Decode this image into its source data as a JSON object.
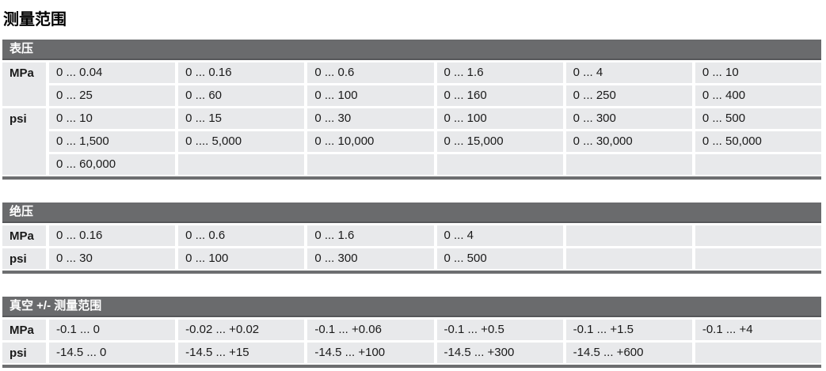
{
  "page": {
    "title": "测量范围"
  },
  "colors": {
    "header_bg": "#6a6b6d",
    "header_border": "#56575a",
    "cell_bg": "#e8e9eb",
    "section_bottom_border": "#6d6e70",
    "header_text": "#ffffff",
    "body_text": "#1a1a1a"
  },
  "sections": [
    {
      "title": "表压",
      "rows": [
        {
          "unit": "MPa",
          "unit_span": 2,
          "cells": [
            "0 ... 0.04",
            "0 ... 0.16",
            "0 ... 0.6",
            "0 ... 1.6",
            "0 ... 4",
            "0 ... 10"
          ]
        },
        {
          "unit": null,
          "cells": [
            "0 ... 25",
            "0 ... 60",
            "0 ... 100",
            "0 ... 160",
            "0 ... 250",
            "0 ... 400"
          ]
        },
        {
          "unit": "psi",
          "unit_span": 3,
          "cells": [
            "0 ... 10",
            "0 ... 15",
            "0 ... 30",
            "0 ... 100",
            "0 ... 300",
            "0 ... 500"
          ]
        },
        {
          "unit": null,
          "cells": [
            "0 ... 1,500",
            "0 .... 5,000",
            "0 ... 10,000",
            "0 ... 15,000",
            "0 ... 30,000",
            "0 ... 50,000"
          ]
        },
        {
          "unit": null,
          "cells": [
            "0 ... 60,000",
            "",
            "",
            "",
            "",
            ""
          ]
        }
      ]
    },
    {
      "title": "绝压",
      "rows": [
        {
          "unit": "MPa",
          "unit_span": 1,
          "cells": [
            "0 ... 0.16",
            "0 ... 0.6",
            "0 ... 1.6",
            "0 ... 4",
            "",
            ""
          ]
        },
        {
          "unit": "psi",
          "unit_span": 1,
          "cells": [
            "0 ... 30",
            "0 ... 100",
            "0 ... 300",
            "0 ... 500",
            "",
            ""
          ]
        }
      ]
    },
    {
      "title": "真空 +/- 测量范围",
      "rows": [
        {
          "unit": "MPa",
          "unit_span": 1,
          "cells": [
            "-0.1 ... 0",
            "-0.02 ... +0.02",
            "-0.1 ... +0.06",
            "-0.1 ... +0.5",
            "-0.1 ... +1.5",
            "-0.1 ... +4"
          ]
        },
        {
          "unit": "psi",
          "unit_span": 1,
          "cells": [
            "-14.5 ... 0",
            "-14.5 ... +15",
            "-14.5 ... +100",
            "-14.5 ... +300",
            "-14.5 ... +600",
            ""
          ]
        }
      ]
    }
  ]
}
